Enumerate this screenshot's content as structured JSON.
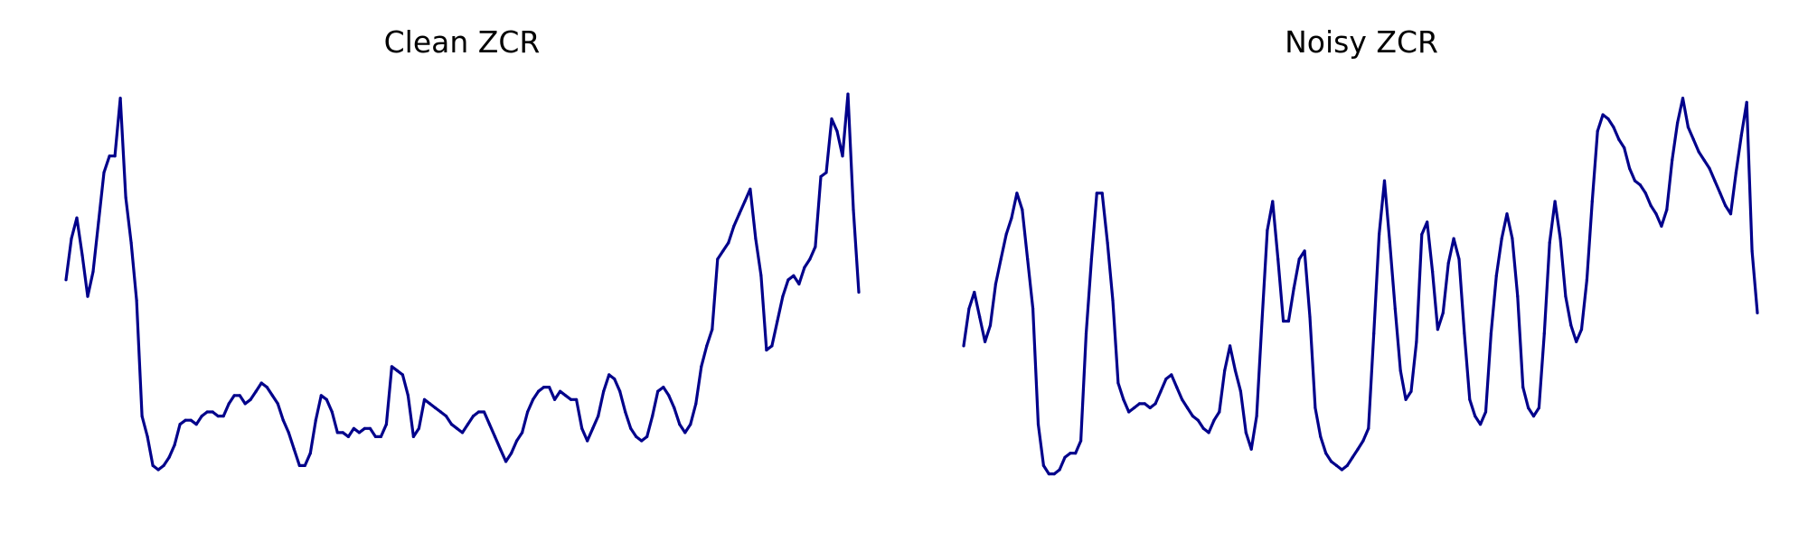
{
  "chart_data": [
    {
      "type": "line",
      "title": "Clean ZCR",
      "xlabel": "",
      "ylabel": "",
      "axes_visible": false,
      "grid": false,
      "color": "#00008b",
      "ylim": [
        0,
        1
      ],
      "values": [
        0.53,
        0.63,
        0.68,
        0.59,
        0.49,
        0.55,
        0.67,
        0.79,
        0.83,
        0.83,
        0.97,
        0.73,
        0.62,
        0.48,
        0.2,
        0.15,
        0.08,
        0.07,
        0.08,
        0.1,
        0.13,
        0.18,
        0.19,
        0.19,
        0.18,
        0.2,
        0.21,
        0.21,
        0.2,
        0.2,
        0.23,
        0.25,
        0.25,
        0.23,
        0.24,
        0.26,
        0.28,
        0.27,
        0.25,
        0.23,
        0.19,
        0.16,
        0.12,
        0.08,
        0.08,
        0.11,
        0.19,
        0.25,
        0.24,
        0.21,
        0.16,
        0.16,
        0.15,
        0.17,
        0.16,
        0.17,
        0.17,
        0.15,
        0.15,
        0.18,
        0.32,
        0.31,
        0.3,
        0.25,
        0.15,
        0.17,
        0.24,
        0.23,
        0.22,
        0.21,
        0.2,
        0.18,
        0.17,
        0.16,
        0.18,
        0.2,
        0.21,
        0.21,
        0.18,
        0.15,
        0.12,
        0.09,
        0.11,
        0.14,
        0.16,
        0.21,
        0.24,
        0.26,
        0.27,
        0.27,
        0.24,
        0.26,
        0.25,
        0.24,
        0.24,
        0.17,
        0.14,
        0.17,
        0.2,
        0.26,
        0.3,
        0.29,
        0.26,
        0.21,
        0.17,
        0.15,
        0.14,
        0.15,
        0.2,
        0.26,
        0.27,
        0.25,
        0.22,
        0.18,
        0.16,
        0.18,
        0.23,
        0.32,
        0.37,
        0.41,
        0.58,
        0.6,
        0.62,
        0.66,
        0.69,
        0.72,
        0.75,
        0.63,
        0.54,
        0.36,
        0.37,
        0.43,
        0.49,
        0.53,
        0.54,
        0.52,
        0.56,
        0.58,
        0.61,
        0.78,
        0.79,
        0.92,
        0.89,
        0.83,
        0.98,
        0.7,
        0.5
      ]
    },
    {
      "type": "line",
      "title": "Noisy ZCR",
      "xlabel": "",
      "ylabel": "",
      "axes_visible": false,
      "grid": false,
      "color": "#00008b",
      "ylim": [
        0,
        1
      ],
      "values": [
        0.37,
        0.46,
        0.5,
        0.44,
        0.38,
        0.42,
        0.52,
        0.58,
        0.64,
        0.68,
        0.74,
        0.7,
        0.58,
        0.46,
        0.18,
        0.08,
        0.06,
        0.06,
        0.07,
        0.1,
        0.11,
        0.11,
        0.14,
        0.4,
        0.58,
        0.74,
        0.74,
        0.62,
        0.48,
        0.28,
        0.24,
        0.21,
        0.22,
        0.23,
        0.23,
        0.22,
        0.23,
        0.26,
        0.29,
        0.3,
        0.27,
        0.24,
        0.22,
        0.2,
        0.19,
        0.17,
        0.16,
        0.19,
        0.21,
        0.31,
        0.37,
        0.31,
        0.26,
        0.16,
        0.12,
        0.2,
        0.43,
        0.65,
        0.72,
        0.58,
        0.43,
        0.43,
        0.51,
        0.58,
        0.6,
        0.44,
        0.22,
        0.15,
        0.11,
        0.09,
        0.08,
        0.07,
        0.08,
        0.1,
        0.12,
        0.14,
        0.17,
        0.4,
        0.64,
        0.77,
        0.62,
        0.46,
        0.31,
        0.24,
        0.26,
        0.38,
        0.64,
        0.67,
        0.55,
        0.41,
        0.45,
        0.57,
        0.63,
        0.58,
        0.4,
        0.24,
        0.2,
        0.18,
        0.21,
        0.4,
        0.54,
        0.63,
        0.69,
        0.63,
        0.49,
        0.27,
        0.22,
        0.2,
        0.22,
        0.4,
        0.62,
        0.72,
        0.63,
        0.49,
        0.42,
        0.38,
        0.41,
        0.53,
        0.72,
        0.89,
        0.93,
        0.92,
        0.9,
        0.87,
        0.85,
        0.8,
        0.77,
        0.76,
        0.74,
        0.71,
        0.69,
        0.66,
        0.7,
        0.82,
        0.91,
        0.97,
        0.9,
        0.87,
        0.84,
        0.82,
        0.8,
        0.77,
        0.74,
        0.71,
        0.69,
        0.79,
        0.88,
        0.96,
        0.6,
        0.45
      ]
    }
  ]
}
